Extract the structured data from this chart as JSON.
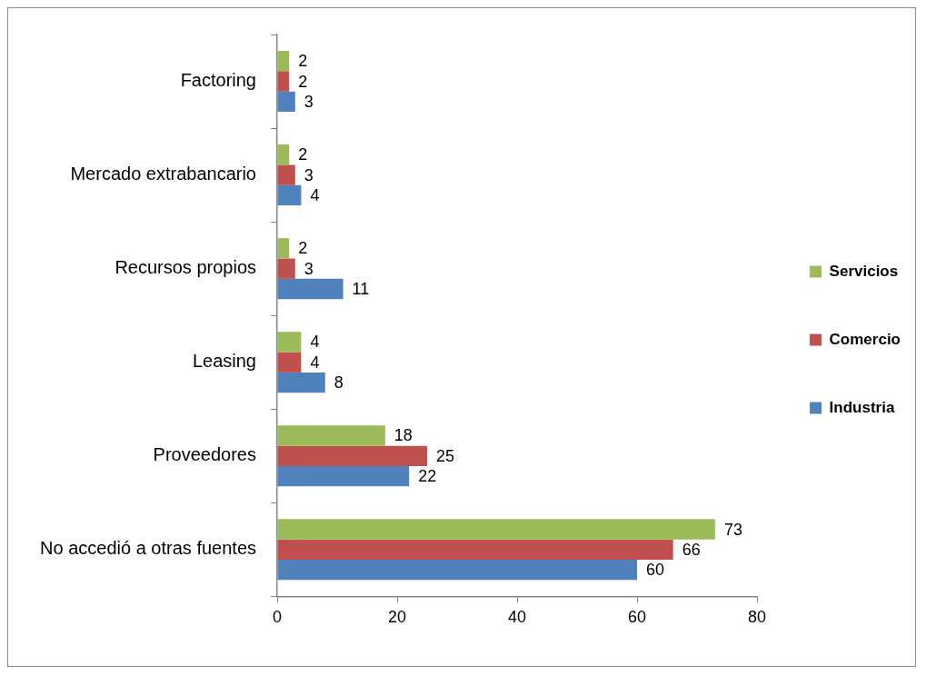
{
  "chart_data": {
    "type": "bar",
    "orientation": "horizontal",
    "categories": [
      "Factoring",
      "Mercado extrabancario",
      "Recursos propios",
      "Leasing",
      "Proveedores",
      "No accedió a otras fuentes"
    ],
    "series": [
      {
        "name": "Servicios",
        "color": "#9bbb59",
        "values": [
          2,
          2,
          2,
          4,
          18,
          73
        ]
      },
      {
        "name": "Comercio",
        "color": "#c0504d",
        "values": [
          2,
          3,
          3,
          4,
          25,
          66
        ]
      },
      {
        "name": "Industria",
        "color": "#4f81bd",
        "values": [
          3,
          4,
          11,
          8,
          22,
          60
        ]
      }
    ],
    "xlim": [
      0,
      80
    ],
    "xticks": [
      0,
      20,
      40,
      60,
      80
    ],
    "grid": false,
    "legend": "right",
    "data_labels": true
  }
}
